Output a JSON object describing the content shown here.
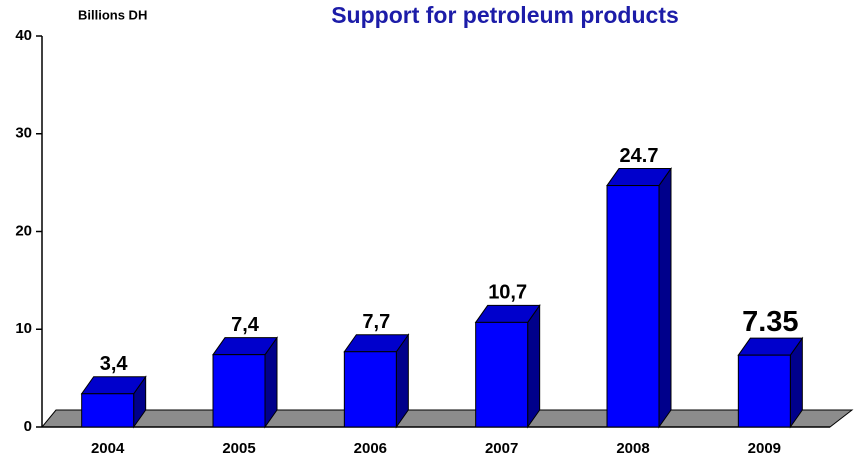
{
  "chart_data": {
    "type": "bar3d",
    "title": "Support for petroleum products",
    "y_axis_label": "Billions DH",
    "categories": [
      "2004",
      "2005",
      "2006",
      "2007",
      "2008",
      "2009"
    ],
    "values": [
      3.4,
      7.4,
      7.7,
      10.7,
      24.7,
      7.35
    ],
    "value_labels": [
      "3,4",
      "7,4",
      "7,7",
      "10,7",
      "24.7",
      "7.35"
    ],
    "color": "#0000ff",
    "ylim": [
      0,
      40
    ],
    "yticks": [
      0,
      10,
      20,
      30,
      40
    ]
  }
}
